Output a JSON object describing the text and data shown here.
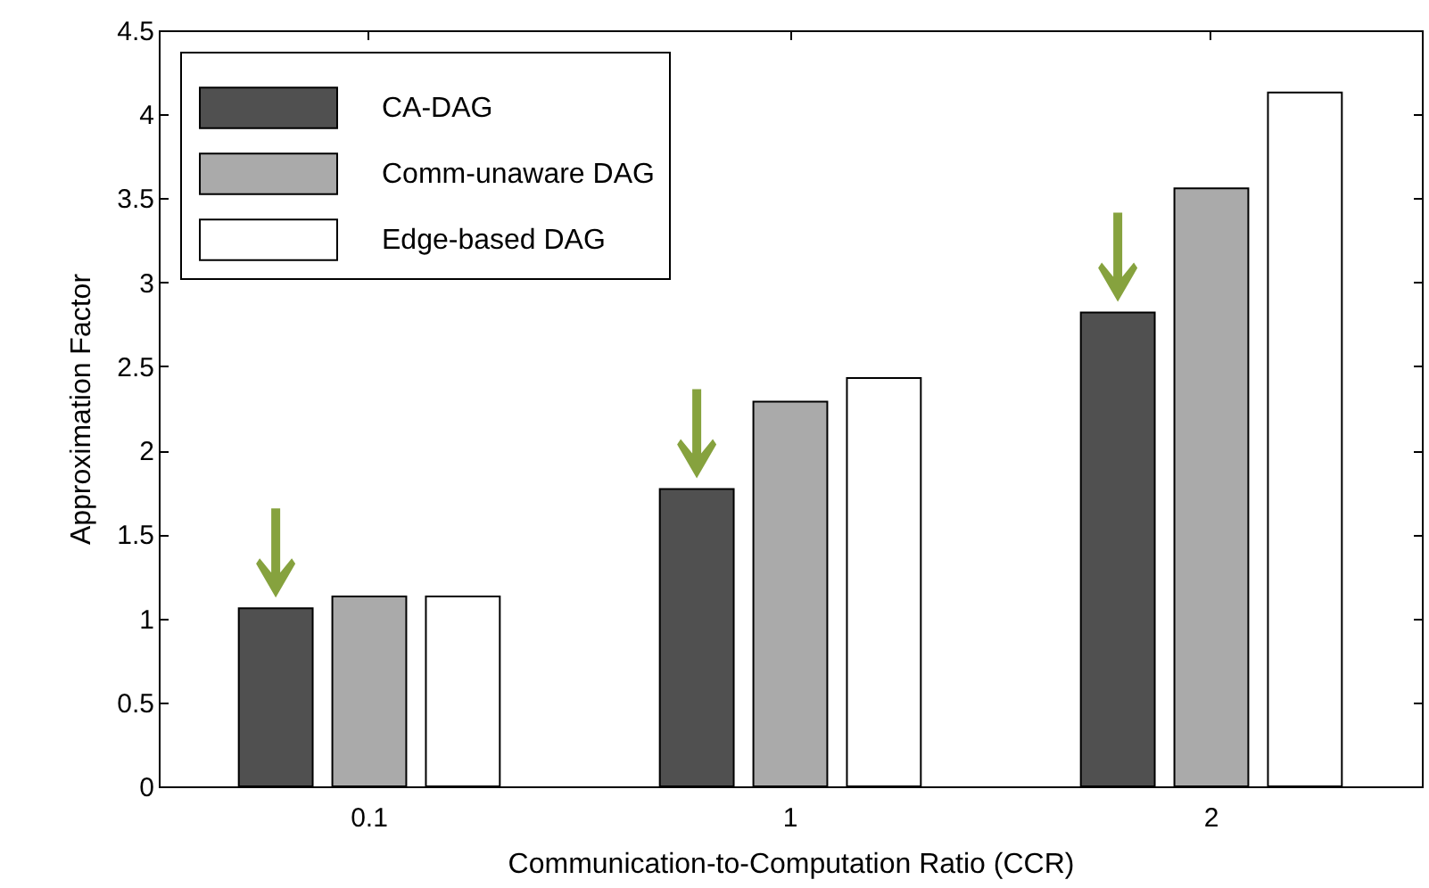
{
  "chart_data": {
    "type": "bar",
    "xlabel": "Communication-to-Computation Ratio (CCR)",
    "ylabel": "Approximation Factor",
    "categories": [
      "0.1",
      "1",
      "2"
    ],
    "series": [
      {
        "name": "CA-DAG",
        "color": "#505050",
        "values": [
          1.06,
          1.77,
          2.82
        ]
      },
      {
        "name": "Comm-unaware DAG",
        "color": "#aaaaaa",
        "values": [
          1.13,
          2.29,
          3.56
        ]
      },
      {
        "name": "Edge-based DAG",
        "color": "#ffffff",
        "values": [
          1.13,
          2.43,
          4.13
        ]
      }
    ],
    "ylim": [
      0,
      4.5
    ],
    "yticks": [
      0,
      0.5,
      1,
      1.5,
      2,
      2.5,
      3,
      3.5,
      4,
      4.5
    ],
    "grid": false,
    "legend": "top left"
  }
}
